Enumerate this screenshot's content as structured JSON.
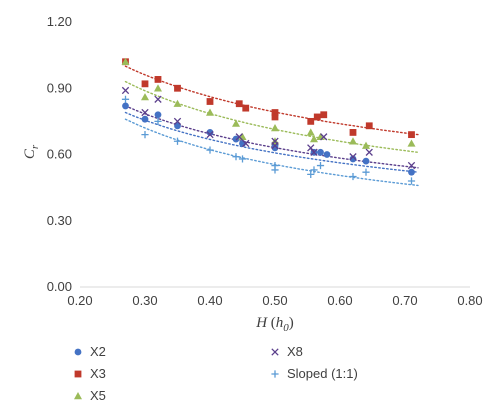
{
  "chart_data": {
    "type": "scatter",
    "title": "",
    "xlabel": {
      "main": "H",
      "paren": "h",
      "sub": "0"
    },
    "ylabel": {
      "main": "C",
      "sub": "r"
    },
    "xlim": [
      0.2,
      0.8
    ],
    "ylim": [
      0.0,
      1.2
    ],
    "x_ticks": [
      "0.20",
      "0.30",
      "0.40",
      "0.50",
      "0.60",
      "0.70",
      "0.80"
    ],
    "y_ticks": [
      "0.00",
      "0.30",
      "0.60",
      "0.90",
      "1.20"
    ],
    "grid": false,
    "legend": "bottom",
    "series": [
      {
        "name": "X2",
        "color": "#4472c4",
        "marker": "circle",
        "points": [
          [
            0.27,
            0.82
          ],
          [
            0.3,
            0.76
          ],
          [
            0.32,
            0.78
          ],
          [
            0.35,
            0.73
          ],
          [
            0.4,
            0.7
          ],
          [
            0.44,
            0.67
          ],
          [
            0.45,
            0.65
          ],
          [
            0.5,
            0.63
          ],
          [
            0.5,
            0.64
          ],
          [
            0.56,
            0.61
          ],
          [
            0.57,
            0.61
          ],
          [
            0.58,
            0.6
          ],
          [
            0.62,
            0.58
          ],
          [
            0.64,
            0.57
          ],
          [
            0.71,
            0.52
          ]
        ],
        "trend": [
          [
            0.27,
            0.79
          ],
          [
            0.72,
            0.52
          ]
        ]
      },
      {
        "name": "X3",
        "color": "#c0392b",
        "marker": "square",
        "points": [
          [
            0.27,
            1.02
          ],
          [
            0.3,
            0.92
          ],
          [
            0.32,
            0.94
          ],
          [
            0.35,
            0.9
          ],
          [
            0.4,
            0.84
          ],
          [
            0.445,
            0.83
          ],
          [
            0.455,
            0.81
          ],
          [
            0.5,
            0.79
          ],
          [
            0.5,
            0.77
          ],
          [
            0.555,
            0.75
          ],
          [
            0.565,
            0.77
          ],
          [
            0.575,
            0.78
          ],
          [
            0.62,
            0.7
          ],
          [
            0.645,
            0.73
          ],
          [
            0.71,
            0.69
          ]
        ],
        "trend": [
          [
            0.27,
            1.0
          ],
          [
            0.72,
            0.69
          ]
        ]
      },
      {
        "name": "X5",
        "color": "#9bbb59",
        "marker": "triangle",
        "points": [
          [
            0.27,
            1.02
          ],
          [
            0.3,
            0.86
          ],
          [
            0.32,
            0.9
          ],
          [
            0.35,
            0.83
          ],
          [
            0.4,
            0.79
          ],
          [
            0.44,
            0.74
          ],
          [
            0.45,
            0.68
          ],
          [
            0.5,
            0.72
          ],
          [
            0.5,
            0.66
          ],
          [
            0.555,
            0.7
          ],
          [
            0.56,
            0.67
          ],
          [
            0.57,
            0.68
          ],
          [
            0.62,
            0.66
          ],
          [
            0.64,
            0.64
          ],
          [
            0.71,
            0.65
          ]
        ],
        "trend": [
          [
            0.27,
            0.93
          ],
          [
            0.72,
            0.61
          ]
        ]
      },
      {
        "name": "X8",
        "color": "#5b3f8c",
        "marker": "x",
        "points": [
          [
            0.27,
            0.89
          ],
          [
            0.3,
            0.79
          ],
          [
            0.32,
            0.85
          ],
          [
            0.35,
            0.75
          ],
          [
            0.4,
            0.69
          ],
          [
            0.445,
            0.68
          ],
          [
            0.455,
            0.65
          ],
          [
            0.5,
            0.66
          ],
          [
            0.5,
            0.64
          ],
          [
            0.555,
            0.63
          ],
          [
            0.56,
            0.61
          ],
          [
            0.575,
            0.68
          ],
          [
            0.62,
            0.59
          ],
          [
            0.645,
            0.61
          ],
          [
            0.71,
            0.55
          ]
        ],
        "trend": [
          [
            0.27,
            0.82
          ],
          [
            0.72,
            0.54
          ]
        ]
      },
      {
        "name": "Sloped (1:1)",
        "color": "#5b9bd5",
        "marker": "plus",
        "points": [
          [
            0.27,
            0.85
          ],
          [
            0.3,
            0.69
          ],
          [
            0.32,
            0.75
          ],
          [
            0.35,
            0.66
          ],
          [
            0.4,
            0.62
          ],
          [
            0.44,
            0.59
          ],
          [
            0.45,
            0.58
          ],
          [
            0.5,
            0.53
          ],
          [
            0.5,
            0.55
          ],
          [
            0.555,
            0.51
          ],
          [
            0.56,
            0.53
          ],
          [
            0.57,
            0.55
          ],
          [
            0.62,
            0.5
          ],
          [
            0.64,
            0.52
          ],
          [
            0.71,
            0.48
          ]
        ],
        "trend": [
          [
            0.27,
            0.76
          ],
          [
            0.72,
            0.46
          ]
        ]
      }
    ]
  }
}
